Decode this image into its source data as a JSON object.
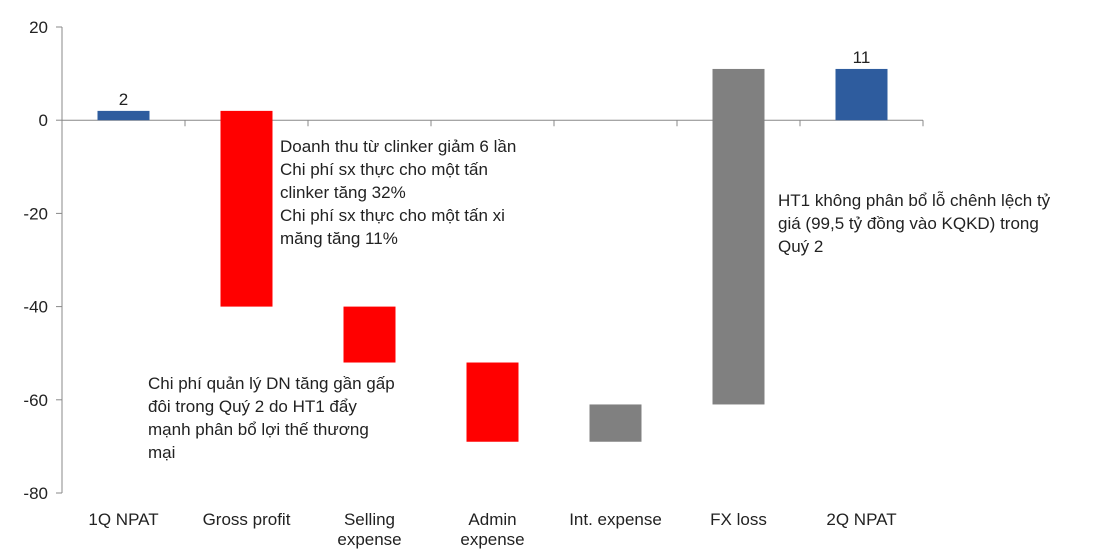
{
  "chart_data": {
    "type": "waterfall",
    "categories": [
      "1Q NPAT",
      "Gross profit",
      "Selling\nexpense",
      "Admin\nexpense",
      "Int. expense",
      "FX loss",
      "2Q NPAT"
    ],
    "values": [
      2,
      -42,
      -12,
      -17,
      8,
      72,
      11
    ],
    "total": [
      true,
      false,
      false,
      false,
      false,
      false,
      true
    ],
    "colors": [
      "#2e5c9e",
      "#ff0000",
      "#ff0000",
      "#ff0000",
      "#808080",
      "#808080",
      "#2e5c9e"
    ],
    "labeled": [
      true,
      false,
      false,
      false,
      false,
      false,
      true
    ],
    "ylim": [
      -80,
      20
    ],
    "yticks": [
      20,
      0,
      -20,
      -40,
      -60,
      -80
    ],
    "annotations": [
      "Doanh thu từ clinker giảm 6 lần\nChi phí sx thực cho một tấn\nclinker tăng 32%\nChi phí sx thực cho một tấn xi\nmăng tăng 11%",
      "Chi phí quản lý DN tăng gần gấp\nđôi trong Quý 2 do HT1 đẩy\nmạnh phân bổ lợi thế thương\nmại",
      "HT1 không phân bổ lỗ chênh lệch tỷ\ngiá (99,5 tỷ đồng vào KQKD) trong\nQuý 2"
    ]
  }
}
